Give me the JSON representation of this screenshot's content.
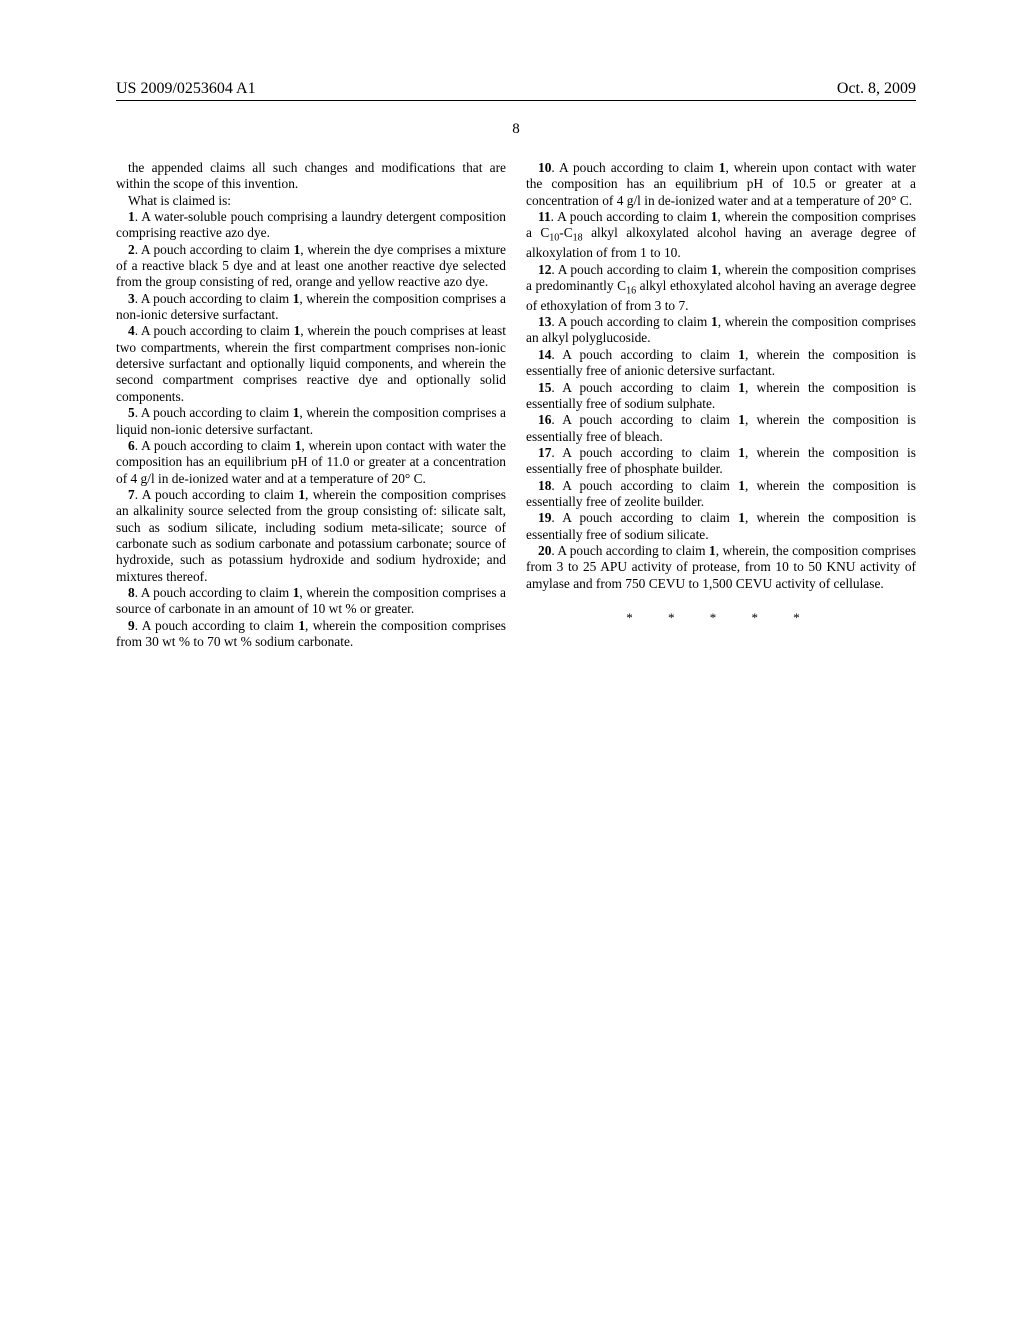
{
  "header": {
    "pub_number": "US 2009/0253604 A1",
    "pub_date": "Oct. 8, 2009"
  },
  "page_number": "8",
  "col1": {
    "preamble1": "the appended claims all such changes and modifications that are within the scope of this invention.",
    "preamble2": "What is claimed is:",
    "c1": ". A water-soluble pouch comprising a laundry detergent composition comprising reactive azo dye.",
    "c2a": ". A pouch according to claim ",
    "c2b": ", wherein the dye comprises a mixture of a reactive black 5 dye and at least one another reactive dye selected from the group consisting of red, orange and yellow reactive azo dye.",
    "c3a": ". A pouch according to claim ",
    "c3b": ", wherein the composition comprises a non-ionic detersive surfactant.",
    "c4a": ". A pouch according to claim ",
    "c4b": ", wherein the pouch comprises at least two compartments, wherein the first compartment comprises non-ionic detersive surfactant and optionally liquid components, and wherein the second compartment comprises reactive dye and optionally solid components.",
    "c5a": ". A pouch according to claim ",
    "c5b": ", wherein the composition comprises a liquid non-ionic detersive surfactant.",
    "c6a": ". A pouch according to claim ",
    "c6b": ", wherein upon contact with water the composition has an equilibrium pH of 11.0 or greater at a concentration of 4 g/l in de-ionized water and at a temperature of 20° C.",
    "c7a": ". A pouch according to claim ",
    "c7b": ", wherein the composition comprises an alkalinity source selected from the group consisting of: silicate salt, such as sodium silicate, including sodium meta-silicate; source of carbonate such as sodium carbonate and potassium carbonate; source of hydroxide, such as potassium hydroxide and sodium hydroxide; and mixtures thereof.",
    "c8a": ". A pouch according to claim ",
    "c8b": ", wherein the composition comprises a source of carbonate in an amount of 10 wt % or greater."
  },
  "col2": {
    "c9a": ". A pouch according to claim ",
    "c9b": ", wherein the composition comprises from 30 wt % to 70 wt % sodium carbonate.",
    "c10a": ". A pouch according to claim ",
    "c10b": ", wherein upon contact with water the composition has an equilibrium pH of 10.5 or greater at a concentration of 4 g/l in de-ionized water and at a temperature of 20° C.",
    "c11a": ". A pouch according to claim ",
    "c11b1": ", wherein the composition comprises a C",
    "c11b2": "-C",
    "c11b3": " alkyl alkoxylated alcohol having an average degree of alkoxylation of from 1 to 10.",
    "c12a": ". A pouch according to claim ",
    "c12b1": ", wherein the composition comprises a predominantly C",
    "c12b2": " alkyl ethoxylated alcohol having an average degree of ethoxylation of from 3 to 7.",
    "c13a": ". A pouch according to claim ",
    "c13b": ", wherein the composition comprises an alkyl polyglucoside.",
    "c14a": ". A pouch according to claim ",
    "c14b": ", wherein the composition is essentially free of anionic detersive surfactant.",
    "c15a": ". A pouch according to claim ",
    "c15b": ", wherein the composition is essentially free of sodium sulphate.",
    "c16a": ". A pouch according to claim ",
    "c16b": ", wherein the composition is essentially free of bleach.",
    "c17a": ". A pouch according to claim ",
    "c17b": ", wherein the composition is essentially free of phosphate builder.",
    "c18a": ". A pouch according to claim ",
    "c18b": ", wherein the composition is essentially free of zeolite builder.",
    "c19a": ". A pouch according to claim ",
    "c19b": ", wherein the composition is essentially free of sodium silicate.",
    "c20a": ". A pouch according to claim ",
    "c20b": ", wherein, the composition comprises from 3 to 25 APU activity of protease, from 10 to 50 KNU activity of amylase and from 750 CEVU to 1,500 CEVU activity of cellulase."
  },
  "nums": {
    "n1": "1",
    "n2": "2",
    "n3": "3",
    "n4": "4",
    "n5": "5",
    "n6": "6",
    "n7": "7",
    "n8": "8",
    "n9": "9",
    "n10": "10",
    "n11": "11",
    "n12": "12",
    "n13": "13",
    "n14": "14",
    "n15": "15",
    "n16": "16",
    "n17": "17",
    "n18": "18",
    "n19": "19",
    "n20": "20",
    "ref1": "1",
    "s10": "10",
    "s16": "16",
    "s18": "18"
  },
  "stars": "*  *  *  *  *"
}
